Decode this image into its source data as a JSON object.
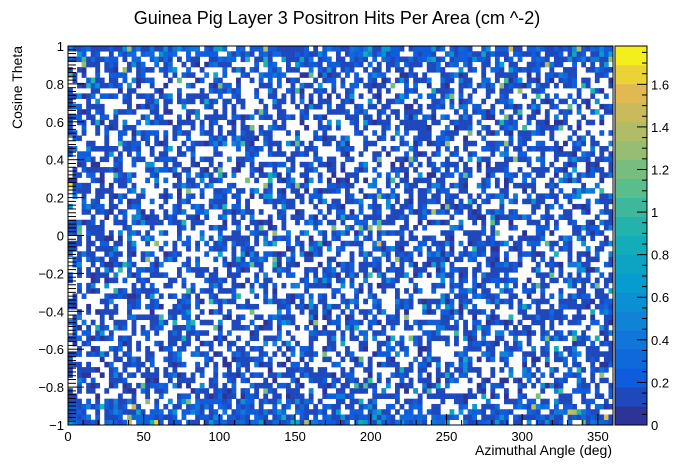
{
  "chart_data": {
    "type": "heatmap",
    "title": "Guinea Pig Layer 3 Positron Hits Per Area (cm ^-2)",
    "xlabel": "Azimuthal Angle (deg)",
    "ylabel": "Cosine Theta",
    "xlim": [
      0,
      360
    ],
    "ylim": [
      -1,
      1
    ],
    "x_ticks": [
      0,
      50,
      100,
      150,
      200,
      250,
      300,
      350
    ],
    "y_ticks": [
      -1,
      -0.8,
      -0.6,
      -0.4,
      -0.2,
      0,
      0.2,
      0.4,
      0.6,
      0.8,
      1
    ],
    "x_tick_labels": [
      "0",
      "50",
      "100",
      "150",
      "200",
      "250",
      "300",
      "350"
    ],
    "y_tick_labels": [
      "−1",
      "−0.8",
      "−0.6",
      "−0.4",
      "−0.2",
      "0",
      "0.2",
      "0.4",
      "0.6",
      "0.8",
      "1"
    ],
    "colorbar": {
      "range": [
        0,
        1.78
      ],
      "ticks": [
        0,
        0.2,
        0.4,
        0.6,
        0.8,
        1,
        1.2,
        1.4,
        1.6
      ],
      "tick_labels": [
        "0",
        "0.2",
        "0.4",
        "0.6",
        "0.8",
        "1",
        "1.2",
        "1.4",
        "1.6"
      ],
      "levels": 20,
      "colormap": "kBird"
    },
    "bins": {
      "x": 120,
      "y": 72
    },
    "density": {
      "typical_value": 0.15,
      "empty_fraction": 0.45,
      "edge_enhancement": "higher occupancy near cos theta = -1 and +1"
    },
    "notable_cells": [
      {
        "x": 2,
        "y": 0.27,
        "value": 1.7
      },
      {
        "x": 205,
        "y": -0.05,
        "value": 1.6
      },
      {
        "x": 240,
        "y": 0.12,
        "value": 1.4
      },
      {
        "x": 218,
        "y": -0.12,
        "value": 1.3
      },
      {
        "x": 130,
        "y": 0.27,
        "value": 1.3
      },
      {
        "x": 100,
        "y": 0.35,
        "value": 1.2
      },
      {
        "x": 290,
        "y": 0.62,
        "value": 1.2
      },
      {
        "x": 265,
        "y": 0.55,
        "value": 1.2
      },
      {
        "x": 335,
        "y": -0.55,
        "value": 1.1
      },
      {
        "x": 60,
        "y": -0.42,
        "value": 1.0
      }
    ]
  }
}
